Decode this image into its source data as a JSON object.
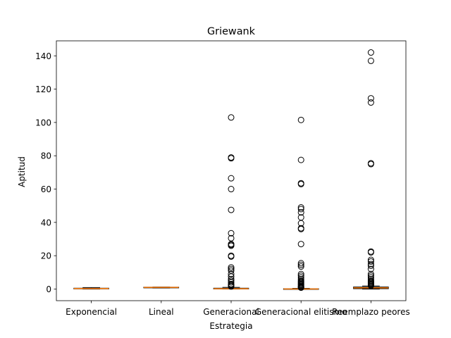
{
  "chart_data": {
    "type": "boxplot",
    "title": "Griewank",
    "xlabel": "Estrategia",
    "ylabel": "Aptitud",
    "ylim": [
      -7,
      149
    ],
    "yticks": [
      0,
      20,
      40,
      60,
      80,
      100,
      120,
      140
    ],
    "grid": false,
    "legend": "none",
    "colors": {
      "box": "#000000",
      "median": "#ff7f0e",
      "flier": "#000000"
    },
    "categories": [
      "Exponencial",
      "Lineal",
      "Generacional",
      "Generacional elitismo",
      "Reemplazo peores"
    ],
    "boxes": [
      {
        "name": "Exponencial",
        "whislo": 0.0,
        "q1": 0.1,
        "med": 0.3,
        "q3": 0.5,
        "whishi": 0.9,
        "fliers": []
      },
      {
        "name": "Lineal",
        "whislo": 0.6,
        "q1": 0.8,
        "med": 1.0,
        "q3": 1.1,
        "whishi": 1.2,
        "fliers": []
      },
      {
        "name": "Generacional",
        "whislo": 0.0,
        "q1": 0.05,
        "med": 0.2,
        "q3": 0.5,
        "whishi": 1.0,
        "fliers": [
          103,
          79,
          78.5,
          66.5,
          60,
          47.5,
          33.5,
          30.5,
          27,
          26.5,
          26,
          20,
          19.5,
          13,
          12,
          11,
          9,
          7.5,
          6,
          5,
          4,
          3,
          2.5,
          2,
          1.5
        ]
      },
      {
        "name": "Generacional elitismo",
        "whislo": 0.0,
        "q1": 0.0,
        "med": 0.05,
        "q3": 0.2,
        "whishi": 0.4,
        "fliers": [
          101.5,
          77.5,
          63.5,
          63,
          49,
          48,
          46,
          43,
          39.5,
          36.5,
          36,
          27,
          15.5,
          14.5,
          13.5,
          9,
          8,
          7,
          6,
          5,
          4.5,
          4,
          3.5,
          3,
          2.5,
          2,
          1.5,
          1.2,
          1,
          0.8
        ]
      },
      {
        "name": "Reemplazo peores",
        "whislo": 0.0,
        "q1": 0.2,
        "med": 0.7,
        "q3": 1.2,
        "whishi": 1.8,
        "fliers": [
          142,
          137,
          114.5,
          112,
          75.5,
          75,
          22.5,
          22,
          17.5,
          16.5,
          15,
          14,
          12,
          9,
          8,
          7,
          6,
          5,
          4.5,
          4,
          3.5,
          3,
          2.5,
          2
        ]
      }
    ]
  }
}
